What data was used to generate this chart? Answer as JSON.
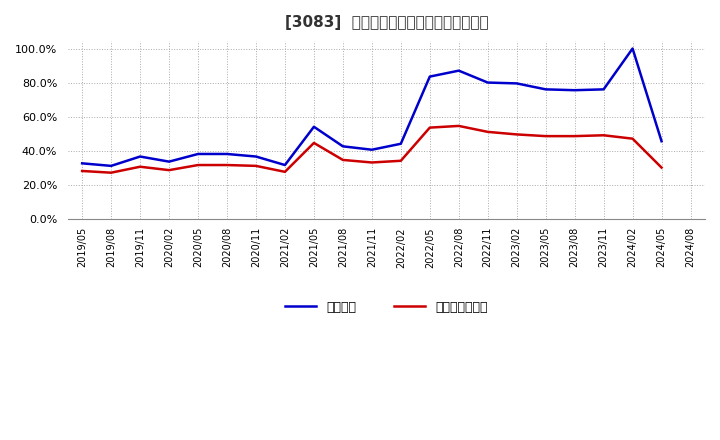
{
  "title": "[3083]  固定比率、固定長期適合率の推移",
  "x_labels": [
    "2019/05",
    "2019/08",
    "2019/11",
    "2020/02",
    "2020/05",
    "2020/08",
    "2020/11",
    "2021/02",
    "2021/05",
    "2021/08",
    "2021/11",
    "2022/02",
    "2022/05",
    "2022/08",
    "2022/11",
    "2023/02",
    "2023/05",
    "2023/08",
    "2023/11",
    "2024/02",
    "2024/05",
    "2024/08"
  ],
  "fixed_ratio": [
    33.0,
    31.5,
    37.0,
    34.0,
    38.5,
    38.5,
    37.0,
    32.0,
    54.5,
    43.0,
    41.0,
    44.5,
    84.0,
    87.5,
    80.5,
    80.0,
    76.5,
    76.0,
    76.5,
    100.5,
    46.0,
    null
  ],
  "fixed_long_ratio": [
    28.5,
    27.5,
    31.0,
    29.0,
    32.0,
    32.0,
    31.5,
    28.0,
    45.0,
    35.0,
    33.5,
    34.5,
    54.0,
    55.0,
    51.5,
    50.0,
    49.0,
    49.0,
    49.5,
    47.5,
    30.5,
    null
  ],
  "line_color_blue": "#0000cc",
  "line_color_red": "#cc0000",
  "background_color": "#ffffff",
  "grid_color": "#aaaaaa",
  "ylim": [
    0,
    105
  ],
  "yticks": [
    0,
    20,
    40,
    60,
    80,
    100
  ],
  "legend_blue": "固定比率",
  "legend_red": "固定長期適合率"
}
